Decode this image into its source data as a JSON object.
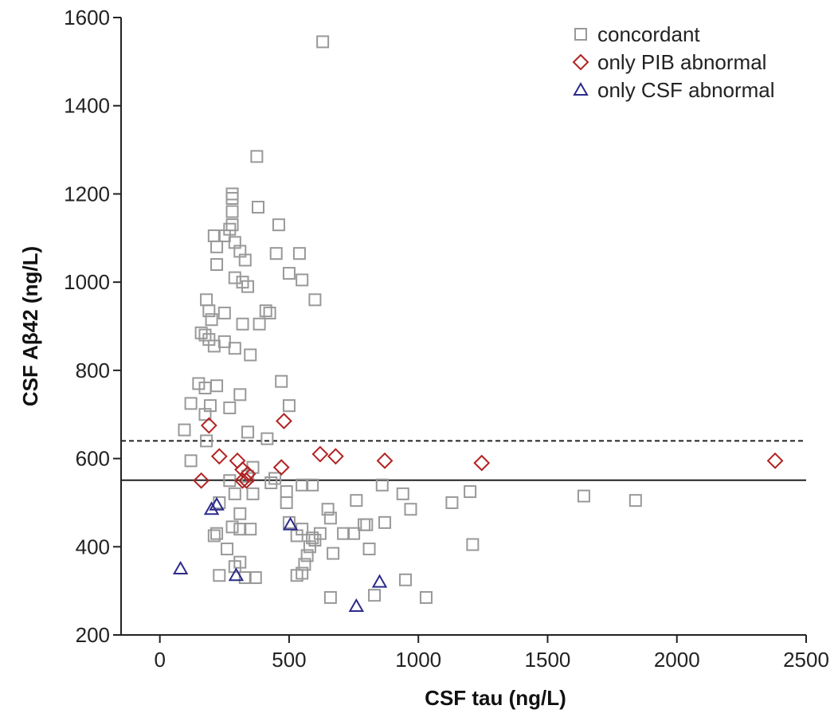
{
  "chart_data": {
    "type": "scatter",
    "title": "",
    "xlabel": "CSF tau (ng/L)",
    "ylabel": "CSF Aβ42 (ng/L)",
    "xlim": [
      -150,
      2500
    ],
    "ylim": [
      200,
      1600
    ],
    "xticks": [
      0,
      500,
      1000,
      1500,
      2000,
      2500
    ],
    "yticks": [
      200,
      400,
      600,
      800,
      1000,
      1200,
      1400,
      1600
    ],
    "grid": false,
    "legend_position": "top-right",
    "reference_lines": [
      {
        "axis": "y",
        "value": 640,
        "style": "dashed"
      },
      {
        "axis": "y",
        "value": 551,
        "style": "solid"
      }
    ],
    "colors": {
      "concordant": "#999999",
      "only_pib": "#b22222",
      "only_csf": "#2b2b8c",
      "axis": "#222222"
    },
    "series": [
      {
        "name": "concordant",
        "marker": "square",
        "points": [
          [
            630,
            1545
          ],
          [
            375,
            1285
          ],
          [
            280,
            1200
          ],
          [
            280,
            1190
          ],
          [
            280,
            1160
          ],
          [
            380,
            1170
          ],
          [
            280,
            1130
          ],
          [
            270,
            1120
          ],
          [
            460,
            1130
          ],
          [
            210,
            1105
          ],
          [
            250,
            1105
          ],
          [
            290,
            1090
          ],
          [
            220,
            1080
          ],
          [
            310,
            1070
          ],
          [
            330,
            1050
          ],
          [
            450,
            1065
          ],
          [
            540,
            1065
          ],
          [
            220,
            1040
          ],
          [
            290,
            1010
          ],
          [
            320,
            1000
          ],
          [
            340,
            990
          ],
          [
            500,
            1020
          ],
          [
            550,
            1005
          ],
          [
            600,
            960
          ],
          [
            180,
            960
          ],
          [
            190,
            935
          ],
          [
            410,
            935
          ],
          [
            425,
            930
          ],
          [
            250,
            930
          ],
          [
            200,
            915
          ],
          [
            320,
            905
          ],
          [
            385,
            905
          ],
          [
            160,
            885
          ],
          [
            175,
            880
          ],
          [
            190,
            870
          ],
          [
            210,
            855
          ],
          [
            250,
            865
          ],
          [
            290,
            850
          ],
          [
            350,
            835
          ],
          [
            470,
            775
          ],
          [
            150,
            770
          ],
          [
            220,
            765
          ],
          [
            175,
            760
          ],
          [
            310,
            745
          ],
          [
            120,
            725
          ],
          [
            195,
            720
          ],
          [
            500,
            720
          ],
          [
            270,
            715
          ],
          [
            175,
            700
          ],
          [
            95,
            665
          ],
          [
            340,
            660
          ],
          [
            415,
            645
          ],
          [
            180,
            640
          ],
          [
            120,
            595
          ],
          [
            360,
            580
          ],
          [
            340,
            560
          ],
          [
            270,
            550
          ],
          [
            430,
            545
          ],
          [
            445,
            555
          ],
          [
            550,
            540
          ],
          [
            590,
            540
          ],
          [
            860,
            540
          ],
          [
            940,
            520
          ],
          [
            1200,
            525
          ],
          [
            1640,
            515
          ],
          [
            1840,
            505
          ],
          [
            1130,
            500
          ],
          [
            490,
            525
          ],
          [
            290,
            520
          ],
          [
            360,
            520
          ],
          [
            760,
            505
          ],
          [
            490,
            500
          ],
          [
            970,
            485
          ],
          [
            230,
            500
          ],
          [
            310,
            475
          ],
          [
            650,
            485
          ],
          [
            660,
            465
          ],
          [
            500,
            455
          ],
          [
            870,
            455
          ],
          [
            800,
            450
          ],
          [
            790,
            450
          ],
          [
            280,
            445
          ],
          [
            310,
            440
          ],
          [
            220,
            430
          ],
          [
            350,
            440
          ],
          [
            550,
            440
          ],
          [
            530,
            425
          ],
          [
            620,
            430
          ],
          [
            710,
            430
          ],
          [
            210,
            425
          ],
          [
            590,
            420
          ],
          [
            600,
            415
          ],
          [
            580,
            400
          ],
          [
            570,
            380
          ],
          [
            670,
            385
          ],
          [
            750,
            430
          ],
          [
            810,
            395
          ],
          [
            260,
            395
          ],
          [
            560,
            360
          ],
          [
            290,
            355
          ],
          [
            310,
            365
          ],
          [
            1210,
            405
          ],
          [
            550,
            340
          ],
          [
            530,
            335
          ],
          [
            230,
            335
          ],
          [
            330,
            330
          ],
          [
            370,
            330
          ],
          [
            950,
            325
          ],
          [
            660,
            285
          ],
          [
            830,
            290
          ],
          [
            1030,
            285
          ]
        ]
      },
      {
        "name": "only PIB abnormal",
        "marker": "diamond",
        "points": [
          [
            190,
            675
          ],
          [
            480,
            685
          ],
          [
            230,
            605
          ],
          [
            300,
            595
          ],
          [
            620,
            610
          ],
          [
            680,
            605
          ],
          [
            870,
            595
          ],
          [
            1245,
            590
          ],
          [
            2380,
            595
          ],
          [
            470,
            580
          ],
          [
            320,
            575
          ],
          [
            340,
            565
          ],
          [
            160,
            550
          ],
          [
            320,
            550
          ],
          [
            335,
            550
          ]
        ]
      },
      {
        "name": "only CSF abnormal",
        "marker": "triangle",
        "points": [
          [
            80,
            350
          ],
          [
            220,
            495
          ],
          [
            200,
            485
          ],
          [
            505,
            450
          ],
          [
            295,
            335
          ],
          [
            850,
            320
          ],
          [
            760,
            265
          ]
        ]
      }
    ]
  }
}
